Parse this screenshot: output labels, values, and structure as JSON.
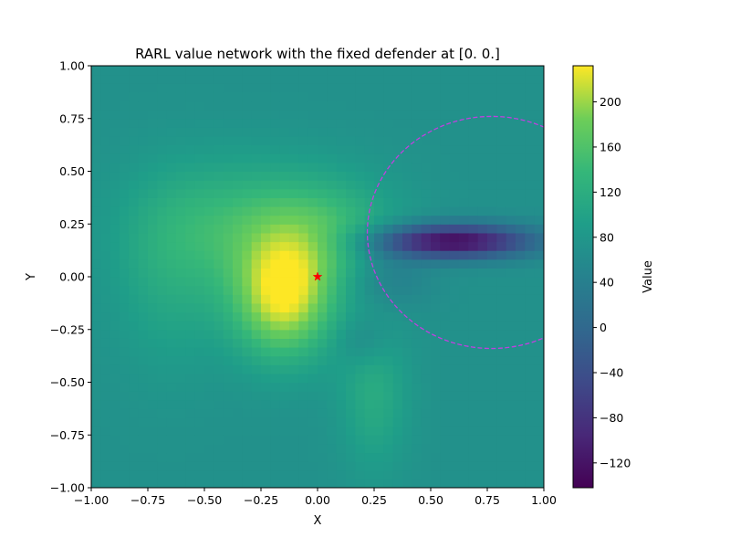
{
  "chart_data": {
    "type": "heatmap",
    "title": "RARL value network with the fixed defender at [0. 0.]",
    "xlabel": "X",
    "ylabel": "Y",
    "xlim": [
      -1.0,
      1.0
    ],
    "ylim": [
      -1.0,
      1.0
    ],
    "x_ticks": [
      -1.0,
      -0.75,
      -0.5,
      -0.25,
      0.0,
      0.25,
      0.5,
      0.75,
      1.0
    ],
    "x_tick_labels": [
      "−1.00",
      "−0.75",
      "−0.50",
      "−0.25",
      "0.00",
      "0.25",
      "0.50",
      "0.75",
      "1.00"
    ],
    "y_ticks": [
      -1.0,
      -0.75,
      -0.5,
      -0.25,
      0.0,
      0.25,
      0.5,
      0.75,
      1.0
    ],
    "y_tick_labels": [
      "−1.00",
      "−0.75",
      "−0.50",
      "−0.25",
      "0.00",
      "0.25",
      "0.50",
      "0.75",
      "1.00"
    ],
    "grid": false,
    "colormap": "viridis",
    "value_range": [
      -142,
      232
    ],
    "colorbar": {
      "label": "Value",
      "ticks": [
        -120,
        -80,
        -40,
        0,
        40,
        80,
        120,
        160,
        200
      ],
      "tick_labels": [
        "−120",
        "−80",
        "−40",
        "0",
        "40",
        "80",
        "120",
        "160",
        "200"
      ]
    },
    "field_features": {
      "background": 70,
      "features": [
        {
          "kind": "peak",
          "center": [
            -0.15,
            -0.1
          ],
          "spread": [
            0.22,
            0.28
          ],
          "value": 150
        },
        {
          "kind": "ridge",
          "center": [
            -0.3,
            0.25
          ],
          "spread": [
            0.45,
            0.3
          ],
          "value": 65
        },
        {
          "kind": "ridge",
          "center": [
            0.05,
            0.2
          ],
          "spread": [
            0.3,
            0.25
          ],
          "value": 50
        },
        {
          "kind": "ridge",
          "center": [
            0.25,
            -0.55
          ],
          "spread": [
            0.15,
            0.35
          ],
          "value": 45
        },
        {
          "kind": "ridge",
          "center": [
            -0.65,
            0.0
          ],
          "spread": [
            0.25,
            0.45
          ],
          "value": 35
        },
        {
          "kind": "valley",
          "center": [
            0.6,
            0.17
          ],
          "spread": [
            0.35,
            0.08
          ],
          "value": -200
        },
        {
          "kind": "valley",
          "center": [
            0.3,
            0.0
          ],
          "spread": [
            0.2,
            0.15
          ],
          "value": -40
        },
        {
          "kind": "valley",
          "center": [
            0.2,
            -0.3
          ],
          "spread": [
            0.12,
            0.12
          ],
          "value": -30
        }
      ]
    },
    "markers": [
      {
        "type": "star",
        "x": 0.0,
        "y": 0.0,
        "color": "#ff0000"
      }
    ],
    "circle": {
      "center": [
        0.77,
        0.21
      ],
      "radius": 0.55,
      "color": "#c040e0",
      "style": "dashed"
    }
  }
}
